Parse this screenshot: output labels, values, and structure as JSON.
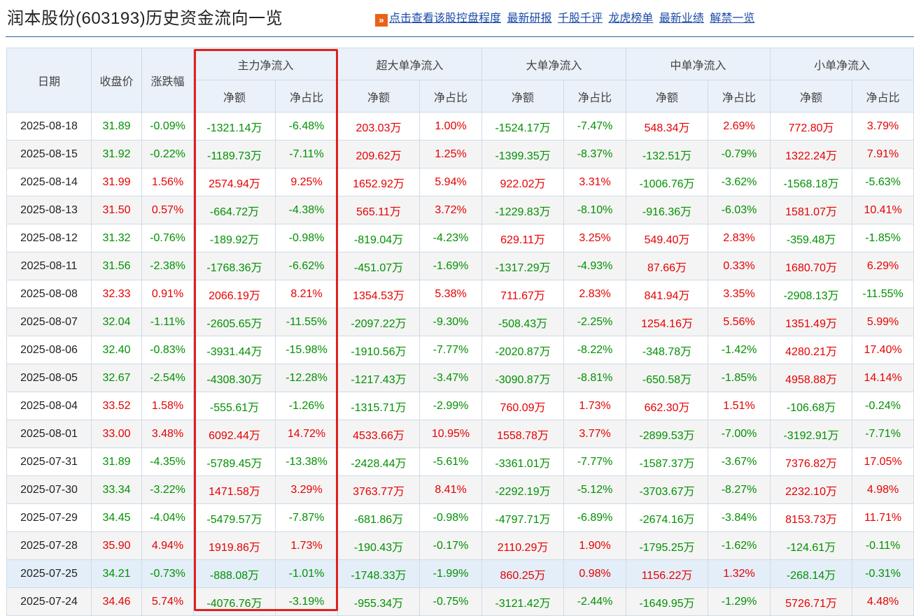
{
  "page": {
    "title": "润本股份(603193)历史资金流向一览",
    "links": [
      "点击查看该股控盘程度",
      "最新研报",
      "千股千评",
      "龙虎榜单",
      "最新业绩",
      "解禁一览"
    ]
  },
  "table": {
    "col_date": "日期",
    "col_close": "收盘价",
    "col_change": "涨跌幅",
    "groups": [
      "主力净流入",
      "超大单净流入",
      "大单净流入",
      "中单净流入",
      "小单净流入"
    ],
    "sub_amount": "净额",
    "sub_ratio": "净占比",
    "rows": [
      [
        "2025-08-18",
        "31.89",
        "-0.09%",
        "-1321.14万",
        "-6.48%",
        "203.03万",
        "1.00%",
        "-1524.17万",
        "-7.47%",
        "548.34万",
        "2.69%",
        "772.80万",
        "3.79%"
      ],
      [
        "2025-08-15",
        "31.92",
        "-0.22%",
        "-1189.73万",
        "-7.11%",
        "209.62万",
        "1.25%",
        "-1399.35万",
        "-8.37%",
        "-132.51万",
        "-0.79%",
        "1322.24万",
        "7.91%"
      ],
      [
        "2025-08-14",
        "31.99",
        "1.56%",
        "2574.94万",
        "9.25%",
        "1652.92万",
        "5.94%",
        "922.02万",
        "3.31%",
        "-1006.76万",
        "-3.62%",
        "-1568.18万",
        "-5.63%"
      ],
      [
        "2025-08-13",
        "31.50",
        "0.57%",
        "-664.72万",
        "-4.38%",
        "565.11万",
        "3.72%",
        "-1229.83万",
        "-8.10%",
        "-916.36万",
        "-6.03%",
        "1581.07万",
        "10.41%"
      ],
      [
        "2025-08-12",
        "31.32",
        "-0.76%",
        "-189.92万",
        "-0.98%",
        "-819.04万",
        "-4.23%",
        "629.11万",
        "3.25%",
        "549.40万",
        "2.83%",
        "-359.48万",
        "-1.85%"
      ],
      [
        "2025-08-11",
        "31.56",
        "-2.38%",
        "-1768.36万",
        "-6.62%",
        "-451.07万",
        "-1.69%",
        "-1317.29万",
        "-4.93%",
        "87.66万",
        "0.33%",
        "1680.70万",
        "6.29%"
      ],
      [
        "2025-08-08",
        "32.33",
        "0.91%",
        "2066.19万",
        "8.21%",
        "1354.53万",
        "5.38%",
        "711.67万",
        "2.83%",
        "841.94万",
        "3.35%",
        "-2908.13万",
        "-11.55%"
      ],
      [
        "2025-08-07",
        "32.04",
        "-1.11%",
        "-2605.65万",
        "-11.55%",
        "-2097.22万",
        "-9.30%",
        "-508.43万",
        "-2.25%",
        "1254.16万",
        "5.56%",
        "1351.49万",
        "5.99%"
      ],
      [
        "2025-08-06",
        "32.40",
        "-0.83%",
        "-3931.44万",
        "-15.98%",
        "-1910.56万",
        "-7.77%",
        "-2020.87万",
        "-8.22%",
        "-348.78万",
        "-1.42%",
        "4280.21万",
        "17.40%"
      ],
      [
        "2025-08-05",
        "32.67",
        "-2.54%",
        "-4308.30万",
        "-12.28%",
        "-1217.43万",
        "-3.47%",
        "-3090.87万",
        "-8.81%",
        "-650.58万",
        "-1.85%",
        "4958.88万",
        "14.14%"
      ],
      [
        "2025-08-04",
        "33.52",
        "1.58%",
        "-555.61万",
        "-1.26%",
        "-1315.71万",
        "-2.99%",
        "760.09万",
        "1.73%",
        "662.30万",
        "1.51%",
        "-106.68万",
        "-0.24%"
      ],
      [
        "2025-08-01",
        "33.00",
        "3.48%",
        "6092.44万",
        "14.72%",
        "4533.66万",
        "10.95%",
        "1558.78万",
        "3.77%",
        "-2899.53万",
        "-7.00%",
        "-3192.91万",
        "-7.71%"
      ],
      [
        "2025-07-31",
        "31.89",
        "-4.35%",
        "-5789.45万",
        "-13.38%",
        "-2428.44万",
        "-5.61%",
        "-3361.01万",
        "-7.77%",
        "-1587.37万",
        "-3.67%",
        "7376.82万",
        "17.05%"
      ],
      [
        "2025-07-30",
        "33.34",
        "-3.22%",
        "1471.58万",
        "3.29%",
        "3763.77万",
        "8.41%",
        "-2292.19万",
        "-5.12%",
        "-3703.67万",
        "-8.27%",
        "2232.10万",
        "4.98%"
      ],
      [
        "2025-07-29",
        "34.45",
        "-4.04%",
        "-5479.57万",
        "-7.87%",
        "-681.86万",
        "-0.98%",
        "-4797.71万",
        "-6.89%",
        "-2674.16万",
        "-3.84%",
        "8153.73万",
        "11.71%"
      ],
      [
        "2025-07-28",
        "35.90",
        "4.94%",
        "1919.86万",
        "1.73%",
        "-190.43万",
        "-0.17%",
        "2110.29万",
        "1.90%",
        "-1795.25万",
        "-1.62%",
        "-124.61万",
        "-0.11%"
      ],
      [
        "2025-07-25",
        "34.21",
        "-0.73%",
        "-888.08万",
        "-1.01%",
        "-1748.33万",
        "-1.99%",
        "860.25万",
        "0.98%",
        "1156.22万",
        "1.32%",
        "-268.14万",
        "-0.31%"
      ],
      [
        "2025-07-24",
        "34.46",
        "5.74%",
        "-4076.76万",
        "-3.19%",
        "-955.34万",
        "-0.75%",
        "-3121.42万",
        "-2.44%",
        "-1649.95万",
        "-1.29%",
        "5726.71万",
        "4.48%"
      ]
    ],
    "colors": {
      "up": "#e60000",
      "down": "#009100",
      "highlight_border": "#e02020"
    }
  }
}
